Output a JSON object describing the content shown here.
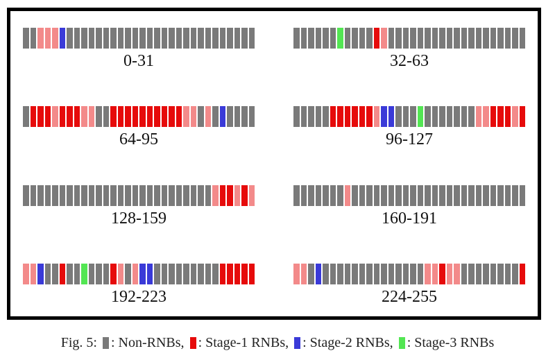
{
  "chart_data": {
    "type": "heatmap",
    "title": "",
    "description": "Eight 32-bit strips showing per-bit RNB classification across addresses 0-255",
    "caption_prefix": "Fig. 5:",
    "colors": {
      "g": "#7a7a7a",
      "R": "#e60b0b",
      "r": "#f38a8a",
      "b": "#3a3ad8",
      "G": "#53e653"
    },
    "color_meanings": {
      "g": "Non-RNB",
      "R": "Stage-1 RNB (strong)",
      "r": "Stage-1 RNB (light)",
      "b": "Stage-2 RNB",
      "G": "Stage-3 RNB"
    },
    "legend": [
      {
        "name": "non-rnb",
        "swatch": "g",
        "label": "Non-RNBs",
        "suffix": ","
      },
      {
        "name": "stage-1-rnb",
        "swatch": "R",
        "label": "Stage-1 RNBs",
        "suffix": ","
      },
      {
        "name": "stage-2-rnb",
        "swatch": "b",
        "label": "Stage-2 RNBs",
        "suffix": ","
      },
      {
        "name": "stage-3-rnb",
        "swatch": "G",
        "label": "Stage-3 RNBs",
        "suffix": ""
      }
    ],
    "blocks": [
      {
        "label": "0-31",
        "cells": "ggrrrbgggggggggggggggggggggggggg"
      },
      {
        "label": "32-63",
        "cells": "ggggggGggggRrggggggggggggggggggg"
      },
      {
        "label": "64-95",
        "cells": "gRRRrRRRrrggRRRRRRRRRRrrgrgbgggg"
      },
      {
        "label": "96-127",
        "cells": "gggggRRRRRRrbbgggGgggggggrrRRRrR"
      },
      {
        "label": "128-159",
        "cells": "ggggggggggggggggggggggggggrRRrRr"
      },
      {
        "label": "160-191",
        "cells": "gggggggrgggggggggggggggggggggggg"
      },
      {
        "label": "192-223",
        "cells": "rrbggRggGgggRrgrbbgggggggggRRRRR"
      },
      {
        "label": "224-255",
        "cells": "rrgbggggggggggggggrrRrrggggggggR"
      }
    ]
  }
}
